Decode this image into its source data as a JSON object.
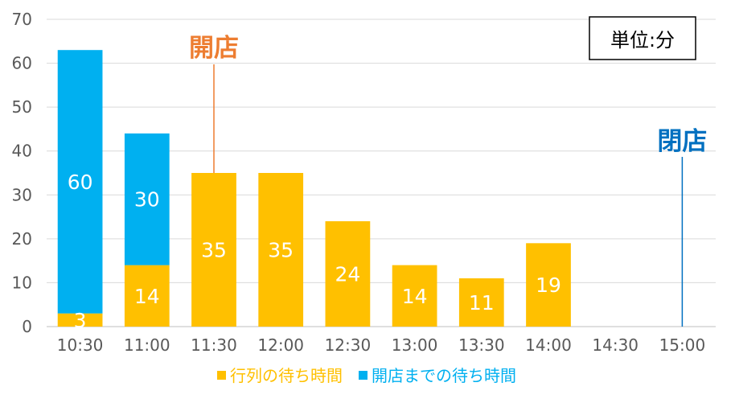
{
  "chart_data": {
    "type": "bar",
    "stacked": true,
    "categories": [
      "10:30",
      "11:00",
      "11:30",
      "12:00",
      "12:30",
      "13:00",
      "13:30",
      "14:00",
      "14:30",
      "15:00"
    ],
    "series": [
      {
        "name": "行列の待ち時間",
        "color": "#FFC000",
        "values": [
          3,
          14,
          35,
          35,
          24,
          14,
          11,
          19,
          0,
          0
        ],
        "labels": [
          "3",
          "14",
          "35",
          "35",
          "24",
          "14",
          "11",
          "19",
          "",
          ""
        ]
      },
      {
        "name": "開店までの待ち時間",
        "color": "#00B0F0",
        "values": [
          60,
          30,
          0,
          0,
          0,
          0,
          0,
          0,
          0,
          0
        ],
        "labels": [
          "60",
          "30",
          "",
          "",
          "",
          "",
          "",
          "",
          "",
          ""
        ]
      }
    ],
    "ylim": [
      0,
      70
    ],
    "yticks": [
      0,
      10,
      20,
      30,
      40,
      50,
      60,
      70
    ],
    "grid": true,
    "legend": "bottom",
    "unit_box": "単位:分",
    "annotations": [
      {
        "text": "開店",
        "category": "11:30",
        "color": "#ED7D31"
      },
      {
        "text": "閉店",
        "category": "15:00",
        "color": "#0070C0"
      }
    ]
  }
}
